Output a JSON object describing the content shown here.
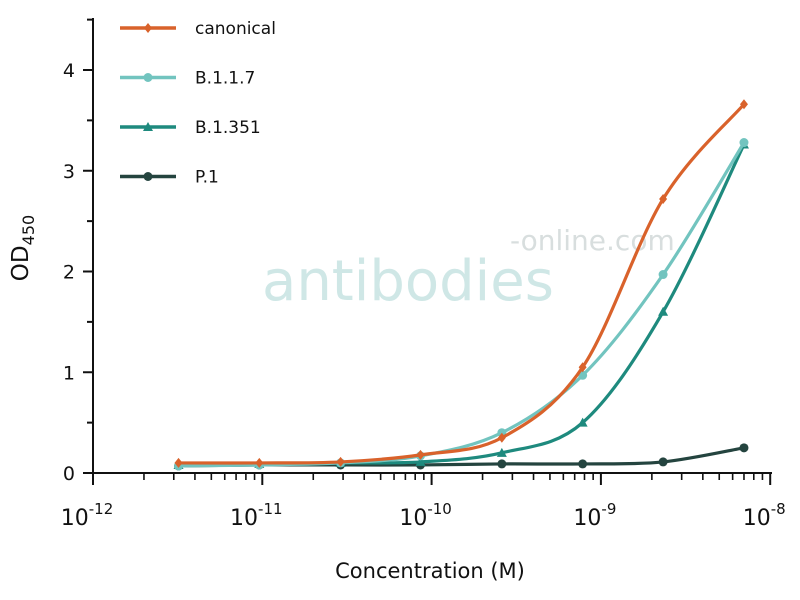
{
  "chart_data": {
    "type": "line",
    "title": "",
    "xlabel": "Concentration (M)",
    "ylabel": "OD",
    "ylabel_subscript": "450",
    "xscale": "log",
    "xlim": [
      1e-12,
      1e-08
    ],
    "ylim": [
      0,
      4.5
    ],
    "yticks": [
      "0",
      "1",
      "2",
      "3",
      "4"
    ],
    "xticks": [
      {
        "base": "10",
        "exp": "-12"
      },
      {
        "base": "10",
        "exp": "-11"
      },
      {
        "base": "10",
        "exp": "-10"
      },
      {
        "base": "10",
        "exp": "-9"
      },
      {
        "base": "10",
        "exp": "-8"
      }
    ],
    "legend_position": "top-left",
    "x": [
      3.2e-12,
      9.6e-12,
      2.9e-11,
      8.6e-11,
      2.6e-10,
      7.8e-10,
      2.33e-09,
      7e-09
    ],
    "series": [
      {
        "name": "canonical",
        "color": "#d9622b",
        "marker": "diamond",
        "values": [
          0.1,
          0.1,
          0.11,
          0.18,
          0.35,
          1.05,
          2.72,
          3.66
        ]
      },
      {
        "name": "B.1.1.7",
        "color": "#72c4bf",
        "marker": "circle",
        "values": [
          0.07,
          0.08,
          0.1,
          0.17,
          0.4,
          0.97,
          1.97,
          3.28
        ]
      },
      {
        "name": "B.1.351",
        "color": "#1e8a7e",
        "marker": "triangle",
        "values": [
          0.08,
          0.09,
          0.1,
          0.11,
          0.2,
          0.5,
          1.6,
          3.26
        ]
      },
      {
        "name": "P.1",
        "color": "#24443f",
        "marker": "circle",
        "values": [
          0.07,
          0.08,
          0.08,
          0.08,
          0.09,
          0.09,
          0.11,
          0.25
        ]
      }
    ]
  },
  "watermark": {
    "main": "antibodies",
    "suffix": "-online.com"
  }
}
